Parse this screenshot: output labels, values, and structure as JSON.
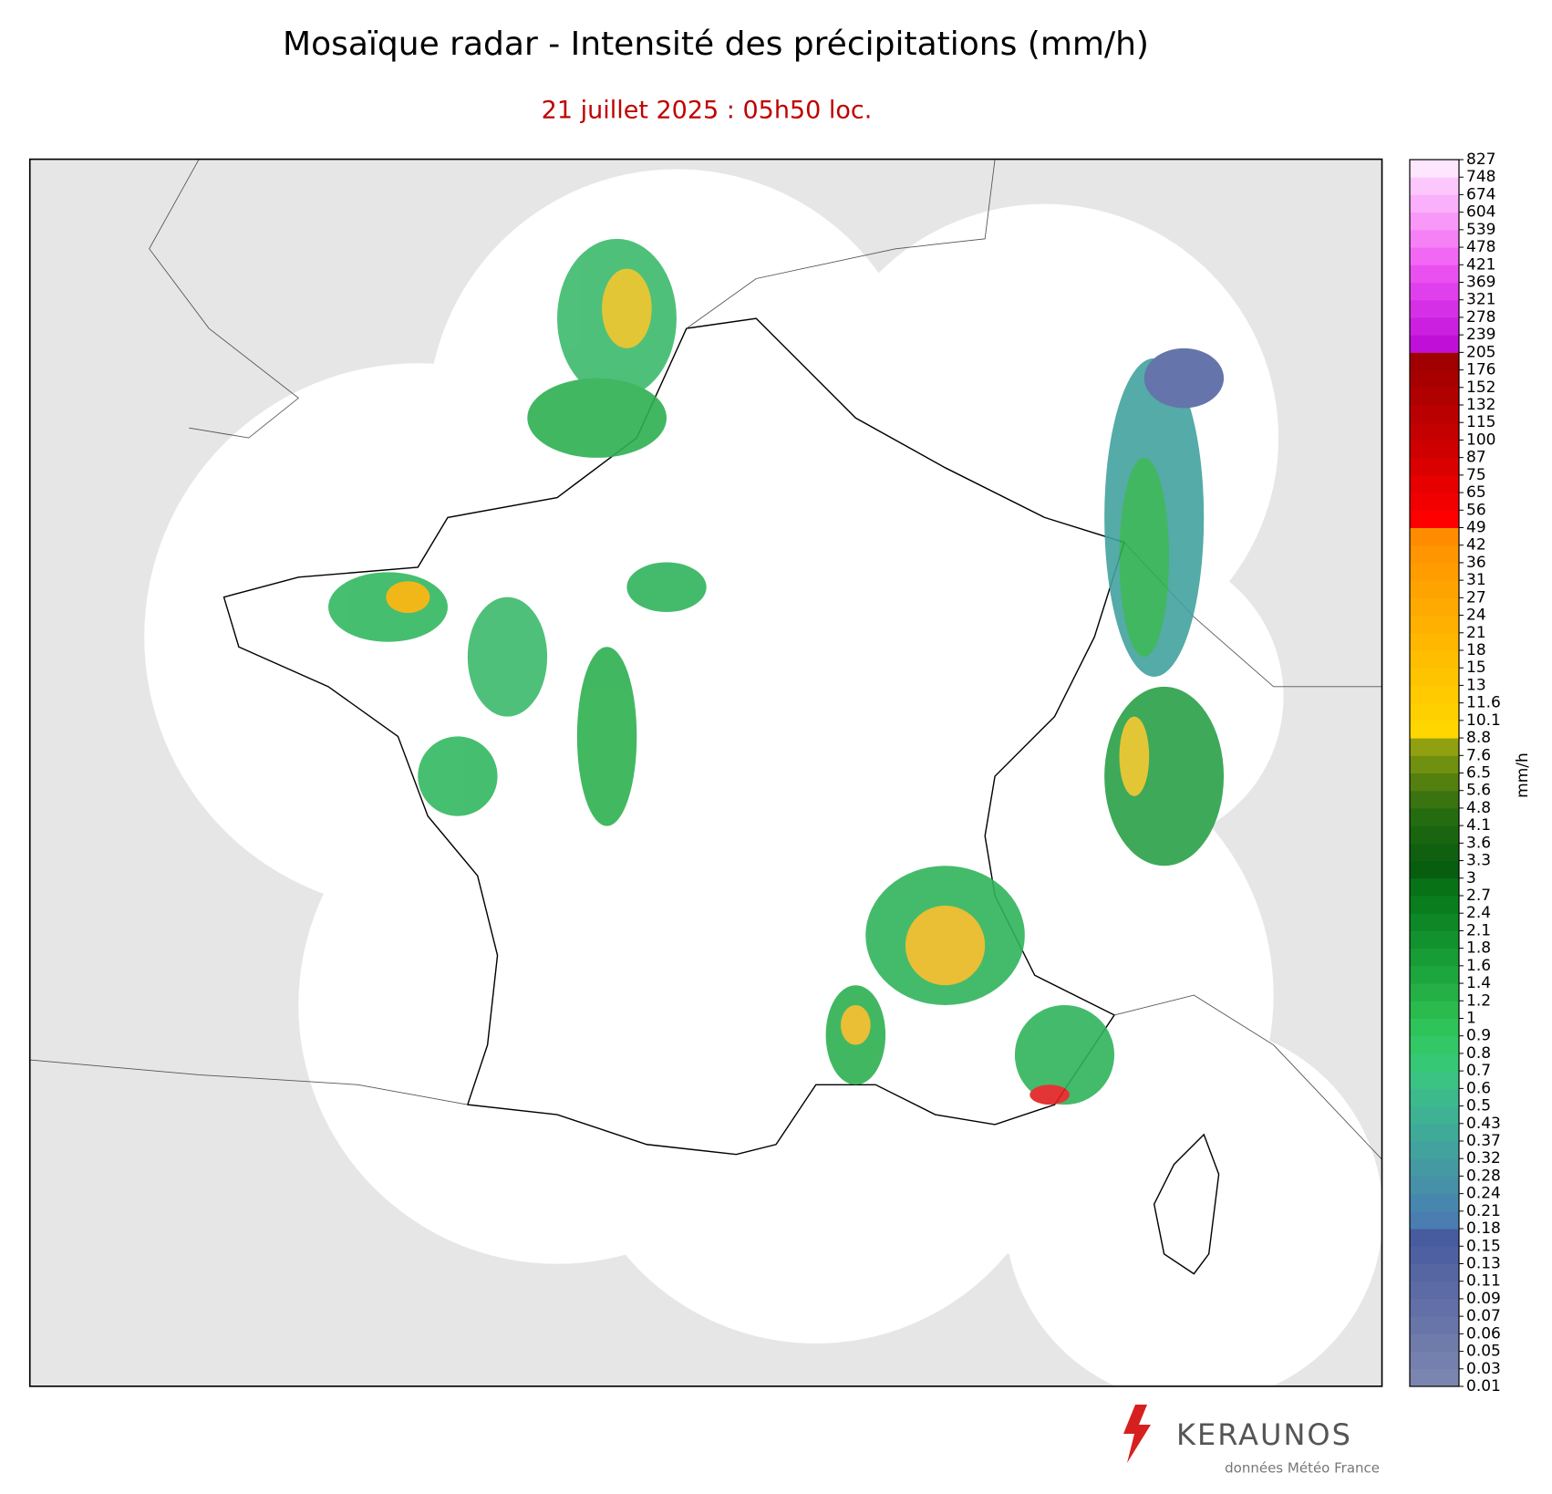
{
  "header": {
    "title": "Mosaïque radar - Intensité des précipitations (mm/h)",
    "subtitle": "21 juillet 2025 : 05h50 loc."
  },
  "legend": {
    "unit": "mm/h",
    "ticks": [
      0.01,
      0.03,
      0.05,
      0.06,
      0.07,
      0.09,
      0.11,
      0.13,
      0.15,
      0.18,
      0.21,
      0.24,
      0.28,
      0.32,
      0.37,
      0.43,
      0.5,
      0.6,
      0.7,
      0.8,
      0.9,
      1,
      1.2,
      1.4,
      1.6,
      1.8,
      2.1,
      2.4,
      2.7,
      3,
      3.3,
      3.6,
      4.1,
      4.8,
      5.6,
      6.5,
      7.6,
      8.8,
      10.1,
      11.6,
      13,
      15,
      18,
      21,
      24,
      27,
      31,
      36,
      42,
      49,
      56,
      65,
      75,
      87,
      100,
      115,
      132,
      152,
      176,
      205,
      239,
      278,
      321,
      369,
      421,
      478,
      539,
      604,
      674,
      748,
      827
    ],
    "colors": [
      "#7b86b0",
      "#7580ae",
      "#6f7bab",
      "#6875a9",
      "#6270a7",
      "#5c6ba5",
      "#5566a3",
      "#4e60a1",
      "#475b9f",
      "#4a7db0",
      "#4887ad",
      "#4691a8",
      "#4499a3",
      "#42a29e",
      "#40aa98",
      "#3eb293",
      "#3cba8c",
      "#3ac383",
      "#36c874",
      "#32c866",
      "#2ec45a",
      "#2aba4e",
      "#24b046",
      "#1ea63e",
      "#189c36",
      "#12922e",
      "#0e8826",
      "#0a7e1e",
      "#087216",
      "#075e0e",
      "#106010",
      "#1a6610",
      "#256c10",
      "#3a7410",
      "#548010",
      "#709010",
      "#90a010",
      "#ffd700",
      "#ffd000",
      "#ffca00",
      "#ffc400",
      "#ffbe00",
      "#ffb700",
      "#ffb000",
      "#ffaa00",
      "#ffa300",
      "#ff9c00",
      "#ff9500",
      "#ff8c00",
      "#ff0000",
      "#f20000",
      "#e60000",
      "#da0000",
      "#ce0000",
      "#c40000",
      "#ba0000",
      "#b00000",
      "#a80000",
      "#a00000",
      "#c010d8",
      "#cc20e0",
      "#d630e6",
      "#e040ec",
      "#ea50f0",
      "#f268f4",
      "#f680f6",
      "#f898f8",
      "#fab0fa",
      "#fcc8fc",
      "#fee6fe"
    ]
  },
  "footer": {
    "brand": "KERAUNOS",
    "credit": "données Météo France"
  }
}
